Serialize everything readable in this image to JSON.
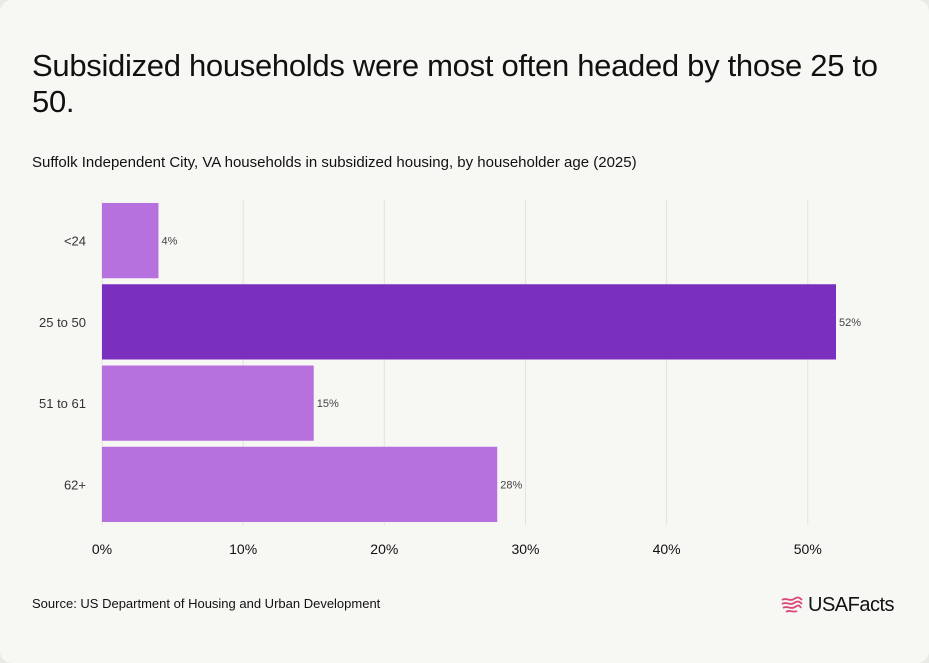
{
  "title": "Subsidized households were most often headed by those 25 to 50.",
  "subtitle": "Suffolk Independent City, VA households in subsidized housing, by householder age (2025)",
  "source": "Source: US Department of Housing and Urban Development",
  "brand": {
    "name": "USAFacts",
    "logo_icon": "usafacts-flag-icon"
  },
  "colors": {
    "bar": "#b771de",
    "highlight": "#7b2fbe",
    "grid": "#e2e2df",
    "label": "#444444",
    "background": "#f7f7f4"
  },
  "chart_data": {
    "type": "bar",
    "orientation": "horizontal",
    "categories": [
      "<24",
      "25 to 50",
      "51 to 61",
      "62+"
    ],
    "values": [
      4,
      52,
      15,
      28
    ],
    "data_labels": [
      "4%",
      "52%",
      "15%",
      "28%"
    ],
    "highlight_index": 1,
    "xlim": [
      0,
      52
    ],
    "xticks": [
      0,
      10,
      20,
      30,
      40,
      50
    ],
    "xtick_labels": [
      "0%",
      "10%",
      "20%",
      "30%",
      "40%",
      "50%"
    ],
    "grid": "vertical",
    "legend": "none"
  }
}
